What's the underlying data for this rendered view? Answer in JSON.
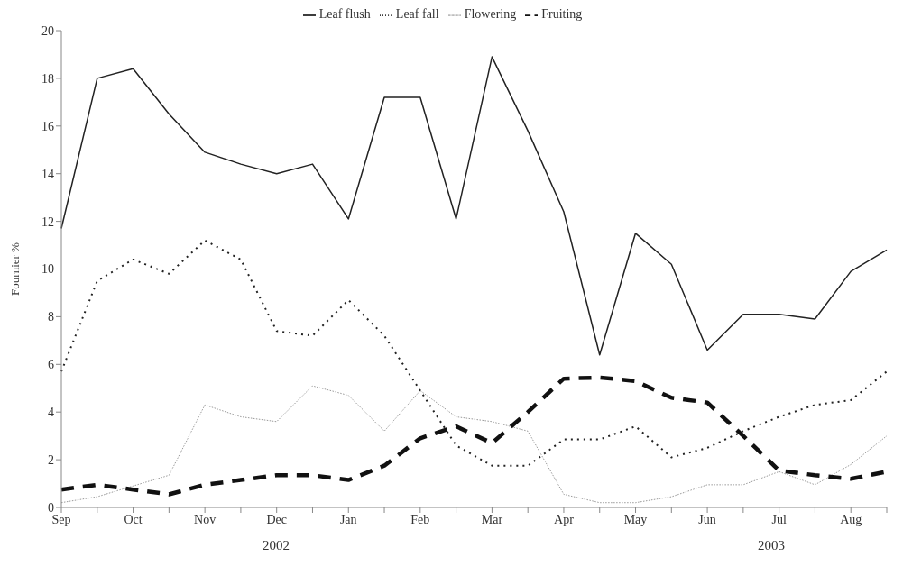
{
  "chart_data": {
    "type": "line",
    "ylabel": "Fournier %",
    "categories": [
      "Sep",
      null,
      "Oct",
      null,
      "Nov",
      null,
      "Dec",
      null,
      "Jan",
      null,
      "Feb",
      null,
      "Mar",
      null,
      "Apr",
      null,
      "May",
      null,
      "Jun",
      null,
      "Jul",
      null,
      "Aug",
      null
    ],
    "series": [
      {
        "name": "Leaf flush",
        "color": "#222222",
        "line_style": "solid",
        "values": [
          11.7,
          18,
          18.4,
          16.5,
          14.9,
          14.4,
          14,
          14.4,
          12.1,
          17.2,
          17.2,
          12.1,
          18.9,
          15.8,
          12.4,
          6.4,
          11.5,
          10.2,
          6.6,
          8.1,
          8.1,
          7.9,
          9.9,
          10.8
        ]
      },
      {
        "name": "Leaf fall",
        "color": "#222222",
        "line_style": "dotted",
        "values": [
          5.7,
          9.5,
          10.4,
          9.8,
          11.2,
          10.4,
          7.4,
          7.2,
          8.7,
          7.2,
          4.9,
          2.6,
          1.75,
          1.75,
          2.85,
          2.85,
          3.4,
          2.1,
          2.5,
          3.2,
          3.8,
          4.3,
          4.5,
          5.7
        ]
      },
      {
        "name": "Flowering",
        "color": "#999999",
        "line_style": "dotted",
        "values": [
          0.2,
          0.45,
          0.9,
          1.35,
          4.3,
          3.8,
          3.6,
          5.1,
          4.7,
          3.2,
          4.9,
          3.8,
          3.6,
          3.2,
          0.55,
          0.2,
          0.2,
          0.45,
          0.95,
          0.95,
          1.5,
          0.95,
          1.8,
          3
        ]
      },
      {
        "name": "Fruiting",
        "color": "#111111",
        "line_style": "dashed",
        "values": [
          0.75,
          0.95,
          0.75,
          0.55,
          0.95,
          1.15,
          1.35,
          1.35,
          1.15,
          1.75,
          2.9,
          3.4,
          2.7,
          4,
          5.4,
          5.45,
          5.3,
          4.6,
          4.4,
          3,
          1.55,
          1.35,
          1.2,
          1.5
        ]
      }
    ],
    "ylim": [
      0,
      20
    ],
    "yticks": [
      0,
      2,
      4,
      6,
      8,
      10,
      12,
      14,
      16,
      18,
      20
    ],
    "grid": false,
    "legend": "top",
    "marker": "none",
    "annotations": [
      "2002",
      "2003"
    ]
  }
}
